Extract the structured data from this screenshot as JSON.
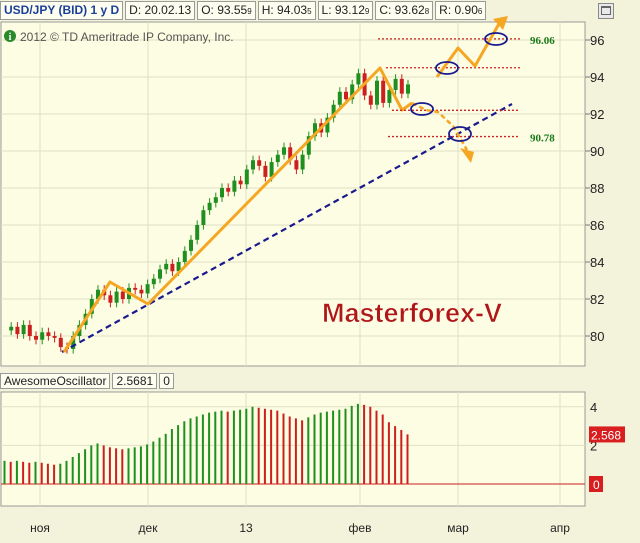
{
  "header": {
    "symbol": "USD/JPY (BID) 1 y D",
    "date": "D: 20.02.13",
    "open_main": "O: 93.55",
    "open_sub": "9",
    "high_main": "H: 94.03",
    "high_sub": "5",
    "low_main": "L: 93.12",
    "low_sub": "9",
    "close_main": "C: 93.62",
    "close_sub": "8",
    "range_main": "R: 0.90",
    "range_sub": "6"
  },
  "copyright": "2012 © TD Ameritrade IP Company, Inc.",
  "info_icon": "info-circle-icon",
  "watermark": "Masterforex-V",
  "oscillator": {
    "name": "AwesomeOscillator",
    "value": "2.5681",
    "zero": "0",
    "last_label": "2.568",
    "zero_label": "0",
    "axis_ticks": [
      "4",
      "2"
    ]
  },
  "colors": {
    "background": "#f3f3dc",
    "up": "#1f8f1f",
    "down": "#cc1f1f",
    "orange": "#f5a623",
    "trend": "#1a1a8f",
    "level": "#cc2222",
    "circle": "#1a1a8f",
    "watermark": "#b01818"
  },
  "chart_data": [
    {
      "type": "candlestick",
      "title": "USD/JPY (BID) 1 y D",
      "x_tick_labels": [
        "ноя",
        "дек",
        "13",
        "фев",
        "мар",
        "апр"
      ],
      "y_tick_labels": [
        "96",
        "94",
        "92",
        "90",
        "88",
        "86",
        "84",
        "82",
        "80"
      ],
      "ylim": [
        78.5,
        97
      ],
      "grid": true,
      "levels": [
        {
          "value": 96.06,
          "label": "96.06"
        },
        {
          "value": 94.5,
          "label": ""
        },
        {
          "value": 92.2,
          "label": ""
        },
        {
          "value": 90.78,
          "label": "90.78"
        }
      ],
      "path_points": [
        80.3,
        80.5,
        80.1,
        80.6,
        80.0,
        79.8,
        80.2,
        80.0,
        79.9,
        79.4,
        79.3,
        80.0,
        80.6,
        81.2,
        82.0,
        82.5,
        82.2,
        81.8,
        82.4,
        82.0,
        82.6,
        82.5,
        82.3,
        82.8,
        83.1,
        83.6,
        83.9,
        83.5,
        84.0,
        84.6,
        85.2,
        86.0,
        86.8,
        87.2,
        87.5,
        88.0,
        87.8,
        88.4,
        88.2,
        89.0,
        89.5,
        89.2,
        88.6,
        89.4,
        89.8,
        90.2,
        89.5,
        89.0,
        89.8,
        90.8,
        91.5,
        91.0,
        91.8,
        92.5,
        93.2,
        92.8,
        93.6,
        94.2,
        93.0,
        92.5,
        93.8,
        92.6,
        93.3,
        93.9,
        93.1,
        93.6
      ]
    },
    {
      "type": "bar",
      "title": "AwesomeOscillator",
      "ylim": [
        0,
        4.5
      ],
      "values": [
        1.2,
        1.15,
        1.2,
        1.15,
        1.1,
        1.15,
        1.1,
        1.05,
        1.0,
        1.05,
        1.2,
        1.4,
        1.6,
        1.8,
        2.0,
        2.1,
        2.0,
        1.9,
        1.85,
        1.8,
        1.85,
        1.9,
        1.95,
        2.05,
        2.2,
        2.4,
        2.6,
        2.85,
        3.05,
        3.25,
        3.4,
        3.5,
        3.6,
        3.7,
        3.75,
        3.8,
        3.75,
        3.8,
        3.85,
        3.9,
        4.0,
        3.95,
        3.9,
        3.85,
        3.8,
        3.65,
        3.5,
        3.4,
        3.3,
        3.45,
        3.6,
        3.7,
        3.75,
        3.8,
        3.85,
        3.9,
        4.05,
        4.15,
        4.1,
        4.0,
        3.8,
        3.6,
        3.2,
        3.0,
        2.8,
        2.57
      ]
    }
  ]
}
